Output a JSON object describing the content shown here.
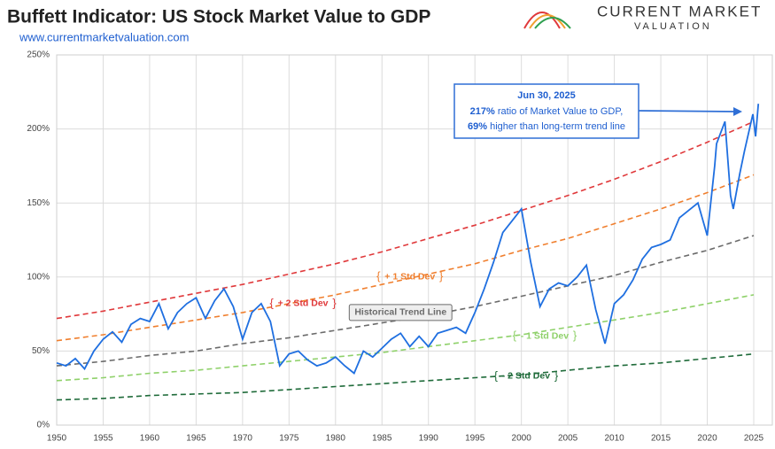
{
  "header": {
    "logo_line1": "CURRENT MARKET",
    "logo_line2": "VALUATION"
  },
  "chart_data": {
    "type": "line",
    "title": "Buffett Indicator: US Stock Market Value to GDP",
    "subtitle": "www.currentmarketvaluation.com",
    "xlim": [
      1950,
      2027
    ],
    "ylim": [
      0,
      250
    ],
    "xticks": [
      1950,
      1955,
      1960,
      1965,
      1970,
      1975,
      1980,
      1985,
      1990,
      1995,
      2000,
      2005,
      2010,
      2015,
      2020,
      2025
    ],
    "yticks": [
      {
        "value": 0,
        "label": "0%"
      },
      {
        "value": 50,
        "label": "50%"
      },
      {
        "value": 100,
        "label": "100%"
      },
      {
        "value": 150,
        "label": "150%"
      },
      {
        "value": 200,
        "label": "200%"
      },
      {
        "value": 250,
        "label": "250%"
      }
    ],
    "grid": true,
    "series": [
      {
        "name": "+ 2 Std Dev",
        "color": "#e0393b",
        "dashed": true,
        "x": [
          1950,
          1955,
          1960,
          1965,
          1970,
          1975,
          1980,
          1985,
          1990,
          1995,
          2000,
          2005,
          2010,
          2015,
          2020,
          2025
        ],
        "values": [
          72,
          77,
          83,
          89,
          95,
          102,
          109,
          117,
          126,
          135,
          145,
          155,
          166,
          178,
          191,
          205
        ]
      },
      {
        "name": "+ 1 Std Dev",
        "color": "#f07f2e",
        "dashed": true,
        "x": [
          1950,
          1955,
          1960,
          1965,
          1970,
          1975,
          1980,
          1985,
          1990,
          1995,
          2000,
          2005,
          2010,
          2015,
          2020,
          2025
        ],
        "values": [
          57,
          61,
          66,
          71,
          76,
          82,
          88,
          95,
          102,
          109,
          118,
          126,
          136,
          146,
          157,
          169
        ]
      },
      {
        "name": "Historical Trend Line",
        "color": "#6b6b6b",
        "dashed": true,
        "x": [
          1950,
          1955,
          1960,
          1965,
          1970,
          1975,
          1980,
          1985,
          1990,
          1995,
          2000,
          2005,
          2010,
          2015,
          2020,
          2025
        ],
        "values": [
          40,
          43,
          47,
          50,
          55,
          59,
          64,
          69,
          74,
          80,
          87,
          94,
          101,
          110,
          118,
          128
        ]
      },
      {
        "name": "- 1 Std Dev",
        "color": "#8fd16a",
        "dashed": true,
        "x": [
          1950,
          1955,
          1960,
          1965,
          1970,
          1975,
          1980,
          1985,
          1990,
          1995,
          2000,
          2005,
          2010,
          2015,
          2020,
          2025
        ],
        "values": [
          30,
          32,
          35,
          37,
          40,
          43,
          46,
          49,
          53,
          57,
          61,
          66,
          71,
          76,
          82,
          88
        ]
      },
      {
        "name": "- 2 Std Dev",
        "color": "#1f6b3a",
        "dashed": true,
        "x": [
          1950,
          1955,
          1960,
          1965,
          1970,
          1975,
          1980,
          1985,
          1990,
          1995,
          2000,
          2005,
          2010,
          2015,
          2020,
          2025
        ],
        "values": [
          17,
          18,
          20,
          21,
          22,
          24,
          26,
          28,
          30,
          32,
          34,
          37,
          40,
          42,
          45,
          48
        ]
      },
      {
        "color": "#1f6fe0",
        "dashed": false,
        "x": [
          1950,
          1951,
          1952,
          1953,
          1954,
          1955,
          1956,
          1957,
          1958,
          1959,
          1960,
          1961,
          1962,
          1963,
          1964,
          1965,
          1966,
          1967,
          1968,
          1969,
          1970,
          1971,
          1972,
          1973,
          1974,
          1975,
          1976,
          1977,
          1978,
          1979,
          1980,
          1981,
          1982,
          1983,
          1984,
          1985,
          1986,
          1987,
          1988,
          1989,
          1990,
          1991,
          1992,
          1993,
          1994,
          1995,
          1996,
          1997,
          1998,
          1999,
          2000,
          2001,
          2002,
          2003,
          2004,
          2005,
          2006,
          2007,
          2008,
          2009,
          2010,
          2011,
          2012,
          2013,
          2014,
          2015,
          2016,
          2017,
          2018,
          2019,
          2020,
          2020.8,
          2021,
          2021.9,
          2022.5,
          2022.8,
          2023.5,
          2024,
          2024.9,
          2025.2,
          2025.5
        ],
        "values": [
          42,
          40,
          45,
          38,
          50,
          58,
          63,
          56,
          68,
          72,
          70,
          82,
          65,
          76,
          82,
          86,
          72,
          84,
          92,
          80,
          58,
          76,
          82,
          70,
          40,
          48,
          50,
          44,
          40,
          42,
          46,
          40,
          35,
          50,
          46,
          52,
          58,
          62,
          53,
          60,
          53,
          62,
          64,
          66,
          62,
          76,
          92,
          110,
          130,
          138,
          146,
          110,
          80,
          92,
          96,
          94,
          100,
          108,
          78,
          55,
          82,
          88,
          98,
          112,
          120,
          122,
          125,
          140,
          145,
          150,
          128,
          175,
          190,
          205,
          155,
          146,
          170,
          185,
          210,
          195,
          217
        ]
      }
    ],
    "annotation": {
      "date": "Jun 30, 2025",
      "line1_bold": "217%",
      "line1_rest": "ratio of Market Value to GDP,",
      "line2_bold": "69%",
      "line2_rest": "higher than long-term trend line"
    }
  }
}
